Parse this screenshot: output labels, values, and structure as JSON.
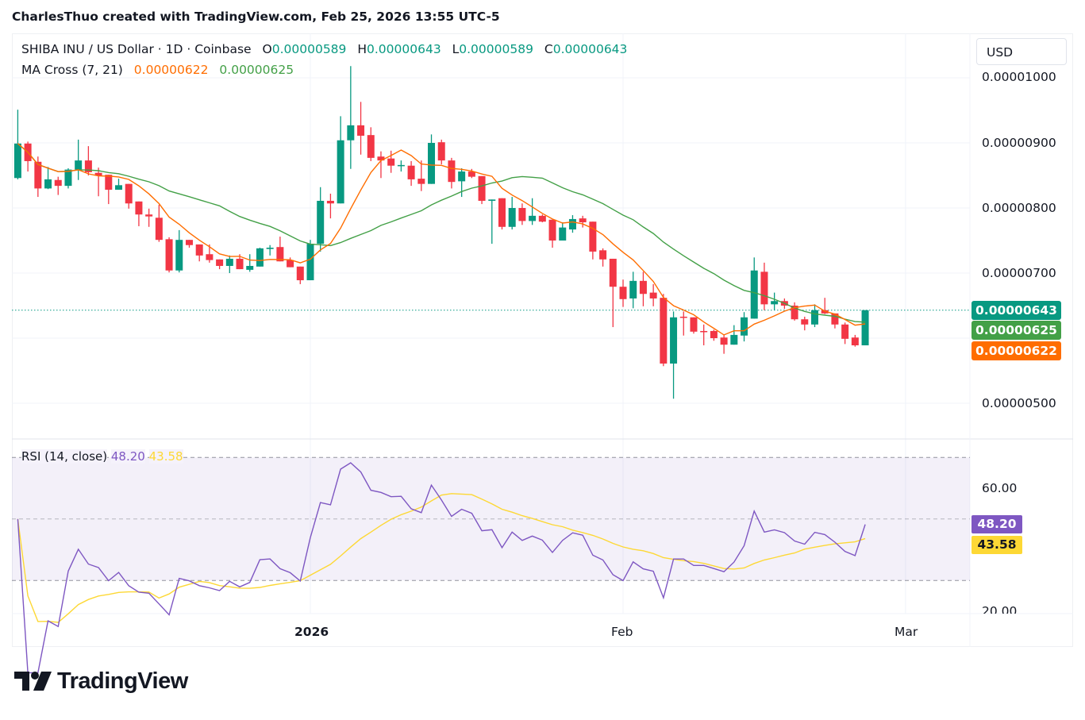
{
  "credit": "CharlesThuo created with TradingView.com, Feb 25, 2026 13:55 UTC-5",
  "legend": {
    "symbol": "SHIBA INU / US Dollar · 1D · Coinbase",
    "o_label": "O",
    "o_value": "0.00000589",
    "h_label": "H",
    "h_value": "0.00000643",
    "l_label": "L",
    "l_value": "0.00000589",
    "c_label": "C",
    "c_value": "0.00000643",
    "ma_title": "MA Cross (7, 21)",
    "ma_fast_value": "0.00000622",
    "ma_slow_value": "0.00000625"
  },
  "rsi_legend": {
    "title": "RSI (14, close)",
    "rsi_value": "48.20",
    "rsi_ma_value": "43.58"
  },
  "currency_button": "USD",
  "logo_text": "TradingView",
  "colors": {
    "up": "#089981",
    "down": "#f23645",
    "ma_fast": "#ff6d00",
    "ma_slow": "#43a047",
    "rsi": "#7e57c2",
    "rsi_ma": "#fdd835",
    "rsi_band": "#7e57c2"
  },
  "chart_data": [
    {
      "type": "candlestick",
      "title": "SHIBA INU / US Dollar · 1D · Coinbase",
      "ylim": [
        4.3e-06,
        1.06e-05
      ],
      "y_ticks": [
        "0.00001000",
        "0.00000900",
        "0.00000800",
        "0.00000700",
        "0.00000500"
      ],
      "x_ticks": [
        "2026",
        "Feb",
        "Mar"
      ],
      "grid": true,
      "price_line": {
        "value": 6.43e-06,
        "label": "0.00000643"
      },
      "price_badges": [
        {
          "label": "0.00000643",
          "role": "last-price"
        },
        {
          "label": "0.00000625",
          "role": "ma-slow"
        },
        {
          "label": "0.00000622",
          "role": "ma-fast"
        }
      ],
      "indicators": [
        {
          "name": "MA Cross (7, 21)",
          "fast": 7,
          "slow": 21
        }
      ],
      "columns": [
        "date",
        "open",
        "high",
        "low",
        "close"
      ],
      "candles": [
        [
          "2025-12-03",
          8.46e-06,
          9.51e-06,
          8.44e-06,
          8.99e-06
        ],
        [
          "2025-12-04",
          8.99e-06,
          9.02e-06,
          8.56e-06,
          8.72e-06
        ],
        [
          "2025-12-05",
          8.71e-06,
          8.79e-06,
          8.17e-06,
          8.3e-06
        ],
        [
          "2025-12-06",
          8.3e-06,
          8.63e-06,
          8.29e-06,
          8.44e-06
        ],
        [
          "2025-12-07",
          8.43e-06,
          8.48e-06,
          8.2e-06,
          8.34e-06
        ],
        [
          "2025-12-08",
          8.34e-06,
          8.61e-06,
          8.3e-06,
          8.59e-06
        ],
        [
          "2025-12-09",
          8.59e-06,
          9.05e-06,
          8.43e-06,
          8.73e-06
        ],
        [
          "2025-12-10",
          8.73e-06,
          8.95e-06,
          8.5e-06,
          8.55e-06
        ],
        [
          "2025-12-11",
          8.54e-06,
          8.62e-06,
          8.18e-06,
          8.5e-06
        ],
        [
          "2025-12-12",
          8.51e-06,
          8.51e-06,
          8.06e-06,
          8.28e-06
        ],
        [
          "2025-12-13",
          8.28e-06,
          8.45e-06,
          8.28e-06,
          8.35e-06
        ],
        [
          "2025-12-14",
          8.37e-06,
          8.37e-06,
          7.99e-06,
          8.07e-06
        ],
        [
          "2025-12-15",
          8.1e-06,
          8.1e-06,
          7.72e-06,
          7.9e-06
        ],
        [
          "2025-12-16",
          7.9e-06,
          7.99e-06,
          7.71e-06,
          7.87e-06
        ],
        [
          "2025-12-17",
          7.85e-06,
          8.05e-06,
          7.48e-06,
          7.51e-06
        ],
        [
          "2025-12-18",
          7.52e-06,
          7.55e-06,
          7.01e-06,
          7.04e-06
        ],
        [
          "2025-12-19",
          7.04e-06,
          7.66e-06,
          7.01e-06,
          7.51e-06
        ],
        [
          "2025-12-20",
          7.51e-06,
          7.51e-06,
          7.39e-06,
          7.43e-06
        ],
        [
          "2025-12-21",
          7.44e-06,
          7.44e-06,
          7.18e-06,
          7.27e-06
        ],
        [
          "2025-12-22",
          7.29e-06,
          7.44e-06,
          7.16e-06,
          7.2e-06
        ],
        [
          "2025-12-23",
          7.21e-06,
          7.21e-06,
          7.06e-06,
          7.11e-06
        ],
        [
          "2025-12-24",
          7.11e-06,
          7.27e-06,
          7e-06,
          7.22e-06
        ],
        [
          "2025-12-25",
          7.22e-06,
          7.29e-06,
          7.06e-06,
          7.06e-06
        ],
        [
          "2025-12-26",
          7.05e-06,
          7.29e-06,
          7.02e-06,
          7.11e-06
        ],
        [
          "2025-12-27",
          7.1e-06,
          7.39e-06,
          7.1e-06,
          7.38e-06
        ],
        [
          "2025-12-28",
          7.37e-06,
          7.43e-06,
          7.27e-06,
          7.39e-06
        ],
        [
          "2025-12-29",
          7.4e-06,
          7.56e-06,
          7.18e-06,
          7.18e-06
        ],
        [
          "2025-12-30",
          7.2e-06,
          7.24e-06,
          7.09e-06,
          7.09e-06
        ],
        [
          "2025-12-31",
          7.1e-06,
          7.1e-06,
          6.83e-06,
          6.89e-06
        ],
        [
          "2026-01-01",
          6.89e-06,
          7.51e-06,
          6.89e-06,
          7.45e-06
        ],
        [
          "2026-01-02",
          7.45e-06,
          8.32e-06,
          7.33e-06,
          8.11e-06
        ],
        [
          "2026-01-03",
          8.11e-06,
          8.22e-06,
          7.84e-06,
          8.07e-06
        ],
        [
          "2026-01-04",
          8.07e-06,
          9.41e-06,
          8.07e-06,
          9.04e-06
        ],
        [
          "2026-01-05",
          9.04e-06,
          1.018e-05,
          8.6e-06,
          9.27e-06
        ],
        [
          "2026-01-06",
          9.27e-06,
          9.63e-06,
          8.82e-06,
          9.11e-06
        ],
        [
          "2026-01-07",
          9.12e-06,
          9.24e-06,
          8.72e-06,
          8.77e-06
        ],
        [
          "2026-01-08",
          8.79e-06,
          8.87e-06,
          8.46e-06,
          8.73e-06
        ],
        [
          "2026-01-09",
          8.76e-06,
          8.88e-06,
          8.54e-06,
          8.65e-06
        ],
        [
          "2026-01-10",
          8.65e-06,
          8.73e-06,
          8.56e-06,
          8.66e-06
        ],
        [
          "2026-01-11",
          8.65e-06,
          8.72e-06,
          8.34e-06,
          8.44e-06
        ],
        [
          "2026-01-12",
          8.45e-06,
          8.73e-06,
          8.26e-06,
          8.37e-06
        ],
        [
          "2026-01-13",
          8.37e-06,
          9.13e-06,
          8.37e-06,
          9e-06
        ],
        [
          "2026-01-14",
          9.01e-06,
          9.05e-06,
          8.67e-06,
          8.73e-06
        ],
        [
          "2026-01-15",
          8.73e-06,
          8.77e-06,
          8.3e-06,
          8.4e-06
        ],
        [
          "2026-01-16",
          8.41e-06,
          8.61e-06,
          8.17e-06,
          8.56e-06
        ],
        [
          "2026-01-17",
          8.56e-06,
          8.6e-06,
          8.46e-06,
          8.48e-06
        ],
        [
          "2026-01-18",
          8.49e-06,
          8.49e-06,
          8.06e-06,
          8.11e-06
        ],
        [
          "2026-01-19",
          8.11e-06,
          8.13e-06,
          7.45e-06,
          8.13e-06
        ],
        [
          "2026-01-20",
          8.15e-06,
          8.15e-06,
          7.67e-06,
          7.71e-06
        ],
        [
          "2026-01-21",
          7.71e-06,
          8.17e-06,
          7.67e-06,
          8e-06
        ],
        [
          "2026-01-22",
          8e-06,
          8.07e-06,
          7.74e-06,
          7.8e-06
        ],
        [
          "2026-01-23",
          7.8e-06,
          8.15e-06,
          7.74e-06,
          7.88e-06
        ],
        [
          "2026-01-24",
          7.88e-06,
          7.9e-06,
          7.78e-06,
          7.79e-06
        ],
        [
          "2026-01-25",
          7.82e-06,
          7.82e-06,
          7.39e-06,
          7.5e-06
        ],
        [
          "2026-01-26",
          7.5e-06,
          7.78e-06,
          7.5e-06,
          7.7e-06
        ],
        [
          "2026-01-27",
          7.67e-06,
          7.89e-06,
          7.62e-06,
          7.83e-06
        ],
        [
          "2026-01-28",
          7.84e-06,
          7.88e-06,
          7.7e-06,
          7.78e-06
        ],
        [
          "2026-01-29",
          7.79e-06,
          7.79e-06,
          7.21e-06,
          7.33e-06
        ],
        [
          "2026-01-30",
          7.35e-06,
          7.38e-06,
          7.1e-06,
          7.21e-06
        ],
        [
          "2026-01-31",
          7.22e-06,
          7.22e-06,
          6.17e-06,
          6.79e-06
        ],
        [
          "2026-02-01",
          6.79e-06,
          6.9e-06,
          6.48e-06,
          6.6e-06
        ],
        [
          "2026-02-02",
          6.61e-06,
          7.02e-06,
          6.46e-06,
          6.88e-06
        ],
        [
          "2026-02-03",
          6.88e-06,
          7.02e-06,
          6.49e-06,
          6.68e-06
        ],
        [
          "2026-02-04",
          6.7e-06,
          6.83e-06,
          6.49e-06,
          6.61e-06
        ],
        [
          "2026-02-05",
          6.62e-06,
          6.68e-06,
          5.57e-06,
          5.61e-06
        ],
        [
          "2026-02-06",
          5.61e-06,
          6.41e-06,
          5.07e-06,
          6.32e-06
        ],
        [
          "2026-02-07",
          6.33e-06,
          6.41e-06,
          6.04e-06,
          6.32e-06
        ],
        [
          "2026-02-08",
          6.32e-06,
          6.32e-06,
          6.07e-06,
          6.1e-06
        ],
        [
          "2026-02-09",
          6.11e-06,
          6.21e-06,
          5.89e-06,
          6.1e-06
        ],
        [
          "2026-02-10",
          6.11e-06,
          6.13e-06,
          5.96e-06,
          6e-06
        ],
        [
          "2026-02-11",
          6.01e-06,
          6.06e-06,
          5.76e-06,
          5.9e-06
        ],
        [
          "2026-02-12",
          5.9e-06,
          6.2e-06,
          5.9e-06,
          6.05e-06
        ],
        [
          "2026-02-13",
          6.04e-06,
          6.4e-06,
          5.95e-06,
          6.32e-06
        ],
        [
          "2026-02-14",
          6.3e-06,
          7.24e-06,
          6.3e-06,
          7.04e-06
        ],
        [
          "2026-02-15",
          7.02e-06,
          7.16e-06,
          6.43e-06,
          6.52e-06
        ],
        [
          "2026-02-16",
          6.52e-06,
          6.7e-06,
          6.43e-06,
          6.57e-06
        ],
        [
          "2026-02-17",
          6.57e-06,
          6.61e-06,
          6.45e-06,
          6.5e-06
        ],
        [
          "2026-02-18",
          6.5e-06,
          6.55e-06,
          6.27e-06,
          6.29e-06
        ],
        [
          "2026-02-19",
          6.29e-06,
          6.33e-06,
          6.12e-06,
          6.21e-06
        ],
        [
          "2026-02-20",
          6.21e-06,
          6.52e-06,
          6.17e-06,
          6.43e-06
        ],
        [
          "2026-02-21",
          6.43e-06,
          6.62e-06,
          6.37e-06,
          6.38e-06
        ],
        [
          "2026-02-22",
          6.38e-06,
          6.38e-06,
          6.15e-06,
          6.21e-06
        ],
        [
          "2026-02-23",
          6.21e-06,
          6.24e-06,
          5.91e-06,
          5.99e-06
        ],
        [
          "2026-02-24",
          6.01e-06,
          6.05e-06,
          5.87e-06,
          5.89e-06
        ],
        [
          "2026-02-25",
          5.89e-06,
          6.43e-06,
          5.89e-06,
          6.43e-06
        ]
      ]
    },
    {
      "type": "line",
      "title": "RSI (14, close)",
      "ylim": [
        18,
        80
      ],
      "y_ticks": [
        "60.00",
        "20.00"
      ],
      "bands": {
        "upper": 70,
        "middle": 50,
        "lower": 30
      },
      "series": [
        {
          "name": "RSI",
          "last": 48.2,
          "label": "48.20"
        },
        {
          "name": "RSI MA",
          "last": 43.58,
          "label": "43.58"
        }
      ]
    }
  ]
}
